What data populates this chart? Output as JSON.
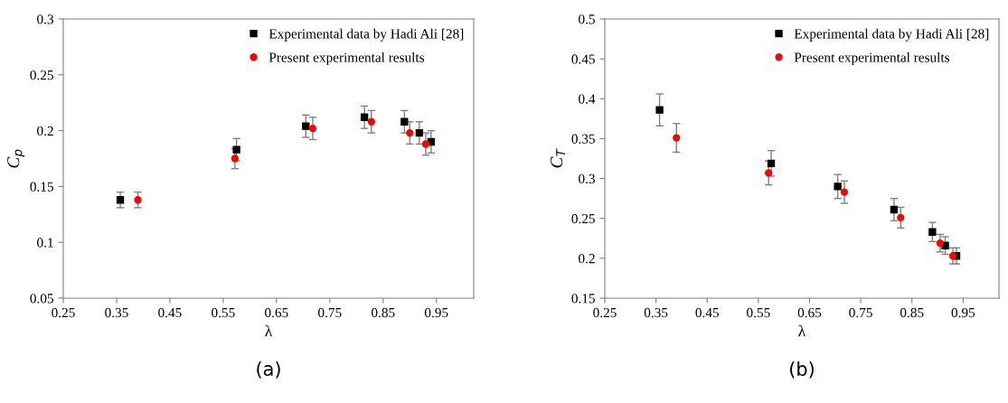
{
  "chart_data": [
    {
      "type": "scatter",
      "xlabel": "λ",
      "ylabel": "C$_{p}$",
      "xlim": [
        0.25,
        1.02
      ],
      "xticks": [
        0.25,
        0.35,
        0.45,
        0.55,
        0.65,
        0.75,
        0.85,
        0.95
      ],
      "ylim": [
        0.05,
        0.3
      ],
      "yticks": [
        0.05,
        0.1,
        0.15,
        0.2,
        0.25,
        0.3
      ],
      "grid": false,
      "legend": "top right",
      "annotations": [
        "(a)"
      ],
      "series": [
        {
          "name": "Experimental data by Hadi Ali [28]",
          "color": "#000000",
          "marker": "square",
          "x": [
            0.357,
            0.575,
            0.705,
            0.815,
            0.89,
            0.918,
            0.94
          ],
          "values": [
            0.138,
            0.183,
            0.204,
            0.212,
            0.208,
            0.198,
            0.19
          ],
          "errors": [
            0.007,
            0.01,
            0.01,
            0.01,
            0.01,
            0.01,
            0.01
          ]
        },
        {
          "name": "Present experimental results",
          "color": "#ff0000",
          "marker": "circle",
          "x": [
            0.39,
            0.572,
            0.718,
            0.828,
            0.9,
            0.93
          ],
          "values": [
            0.138,
            0.175,
            0.202,
            0.208,
            0.198,
            0.188
          ],
          "errors": [
            0.007,
            0.009,
            0.01,
            0.01,
            0.01,
            0.01
          ]
        }
      ]
    },
    {
      "type": "scatter",
      "xlabel": "λ",
      "ylabel": "C$_{T}$",
      "xlim": [
        0.25,
        1.02
      ],
      "xticks": [
        0.25,
        0.35,
        0.45,
        0.55,
        0.65,
        0.75,
        0.85,
        0.95
      ],
      "ylim": [
        0.15,
        0.5
      ],
      "yticks": [
        0.15,
        0.2,
        0.25,
        0.3,
        0.35,
        0.4,
        0.45,
        0.5
      ],
      "grid": false,
      "legend": "top right",
      "annotations": [
        "(b)"
      ],
      "series": [
        {
          "name": "Experimental data by Hadi Ali [28]",
          "color": "#000000",
          "marker": "square",
          "x": [
            0.357,
            0.575,
            0.705,
            0.815,
            0.89,
            0.915,
            0.937
          ],
          "values": [
            0.386,
            0.319,
            0.29,
            0.261,
            0.233,
            0.216,
            0.203
          ],
          "errors": [
            0.02,
            0.016,
            0.015,
            0.014,
            0.012,
            0.011,
            0.01
          ]
        },
        {
          "name": "Present experimental results",
          "color": "#ff0000",
          "marker": "circle",
          "x": [
            0.39,
            0.57,
            0.718,
            0.828,
            0.905,
            0.93
          ],
          "values": [
            0.351,
            0.307,
            0.283,
            0.251,
            0.219,
            0.203
          ],
          "errors": [
            0.018,
            0.015,
            0.014,
            0.013,
            0.011,
            0.01
          ]
        }
      ]
    }
  ]
}
